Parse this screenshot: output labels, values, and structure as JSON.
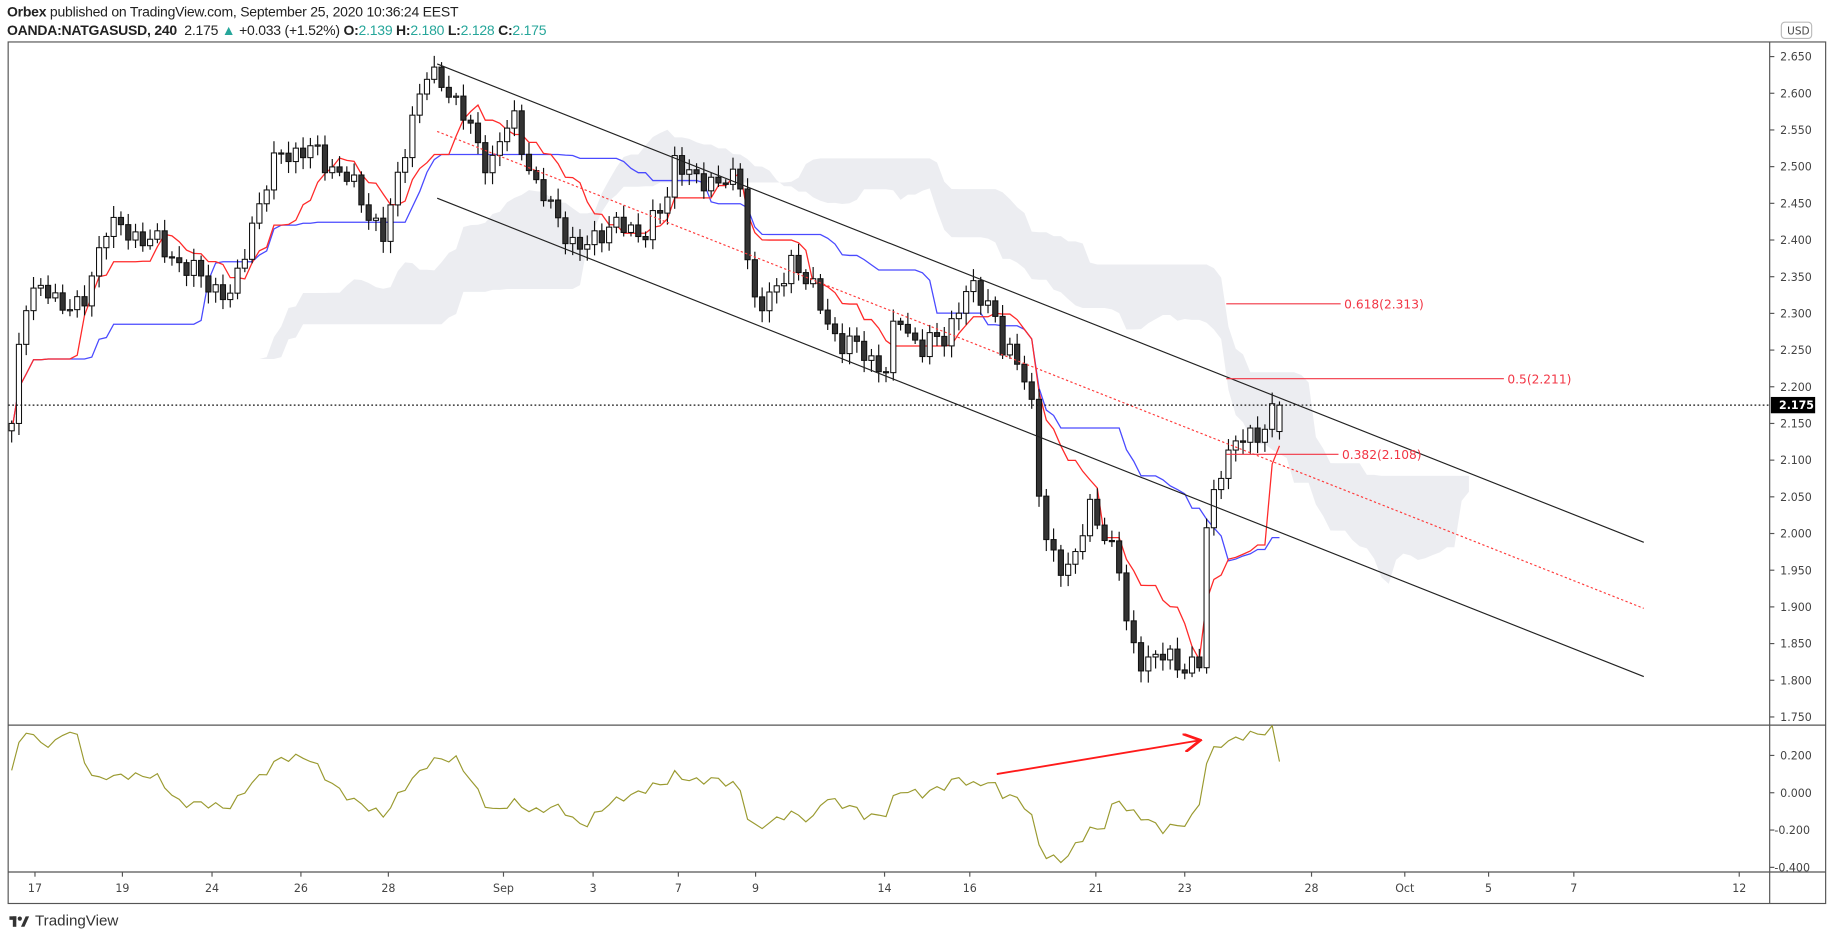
{
  "header": {
    "publisher": "Orbex",
    "published_text": "published on TradingView.com, September 25, 2020 10:36:24 EEST",
    "symbol": "OANDA:NATGASUSD, 240",
    "last": "2.175",
    "change": "+0.033 (+1.52%)",
    "o_label": "O:",
    "o": "2.139",
    "h_label": "H:",
    "h": "2.180",
    "l_label": "L:",
    "l": "2.128",
    "c_label": "C:",
    "c": "2.175"
  },
  "footer": {
    "brand": "TradingView"
  },
  "colors": {
    "up": "#ffffff",
    "down": "#333333",
    "tenkan": "#ff2a2a",
    "kijun": "#4a4aff",
    "cloud": "#e9eaee",
    "indicator": "#9a9a30",
    "channel": "#222222",
    "fib": "#f23645",
    "accent_green": "#26a69a"
  },
  "chart_data": {
    "type": "candlestick",
    "symbol": "OANDA:NATGASUSD",
    "timeframe": "240",
    "currency_label": "USD",
    "ylim": [
      1.739,
      2.67
    ],
    "price_ticks": [
      "2.650",
      "2.600",
      "2.550",
      "2.500",
      "2.450",
      "2.400",
      "2.350",
      "2.300",
      "2.250",
      "2.200",
      "2.150",
      "2.100",
      "2.050",
      "2.000",
      "1.950",
      "1.900",
      "1.850",
      "1.800",
      "1.750"
    ],
    "current_price": "2.175",
    "last_candle": {
      "open": 2.139,
      "high": 2.18,
      "low": 2.128,
      "close": 2.175
    },
    "close_path": [
      [
        0,
        2.15
      ],
      [
        1.6,
        2.32
      ],
      [
        4.8,
        2.33
      ],
      [
        9.6,
        2.3
      ],
      [
        12.8,
        2.42
      ],
      [
        19.2,
        2.4
      ],
      [
        25.6,
        2.35
      ],
      [
        30.4,
        2.32
      ],
      [
        32.8,
        2.42
      ],
      [
        36.8,
        2.52
      ],
      [
        41.6,
        2.52
      ],
      [
        46.4,
        2.48
      ],
      [
        49.6,
        2.43
      ],
      [
        51.2,
        2.4
      ],
      [
        54.4,
        2.55
      ],
      [
        56.8,
        2.62
      ],
      [
        59.2,
        2.62
      ],
      [
        62.4,
        2.56
      ],
      [
        65.6,
        2.5
      ],
      [
        68.8,
        2.57
      ],
      [
        72,
        2.47
      ],
      [
        75.2,
        2.43
      ],
      [
        77.6,
        2.38
      ],
      [
        81.6,
        2.42
      ],
      [
        86.4,
        2.41
      ],
      [
        89.6,
        2.44
      ],
      [
        91.2,
        2.52
      ],
      [
        94.4,
        2.47
      ],
      [
        97.6,
        2.49
      ],
      [
        100,
        2.47
      ],
      [
        101.6,
        2.32
      ],
      [
        104.8,
        2.32
      ],
      [
        107.2,
        2.38
      ],
      [
        110.4,
        2.32
      ],
      [
        113.6,
        2.26
      ],
      [
        116.8,
        2.25
      ],
      [
        120,
        2.22
      ],
      [
        121.6,
        2.3
      ],
      [
        124.8,
        2.25
      ],
      [
        128,
        2.27
      ],
      [
        131.2,
        2.33
      ],
      [
        134.4,
        2.32
      ],
      [
        136,
        2.25
      ],
      [
        139.2,
        2.22
      ],
      [
        140.5,
        2.15
      ],
      [
        141.3,
        2.0
      ],
      [
        143.2,
        1.96
      ],
      [
        145.6,
        1.96
      ],
      [
        148,
        2.03
      ],
      [
        150.4,
        2.0
      ],
      [
        152,
        1.95
      ],
      [
        153.3,
        1.85
      ],
      [
        155.2,
        1.83
      ],
      [
        158.4,
        1.83
      ],
      [
        161.6,
        1.82
      ],
      [
        163.2,
        1.82
      ],
      [
        164,
        2.0
      ],
      [
        165.6,
        2.09
      ],
      [
        168,
        2.12
      ],
      [
        171.2,
        2.14
      ],
      [
        174,
        2.175
      ]
    ],
    "ichimoku": {
      "tenkan": 9,
      "kijun": 26,
      "senkou_b": 52,
      "displacement": 26
    },
    "channel": {
      "upper": [
        [
          58.4,
          2.64
        ],
        [
          224,
          1.988
        ]
      ],
      "lower": [
        [
          58.4,
          2.457
        ],
        [
          224,
          1.805
        ]
      ],
      "median": [
        [
          58.4,
          2.548
        ],
        [
          224,
          1.898
        ]
      ]
    },
    "fib_levels": [
      {
        "label": "0.618(2.313)",
        "price": 2.313,
        "from_bar": 166.7,
        "to_bar": 182.4
      },
      {
        "label": "0.5(2.211)",
        "price": 2.211,
        "from_bar": 166.7,
        "to_bar": 204.8
      },
      {
        "label": "0.382(2.108)",
        "price": 2.108,
        "from_bar": 166.7,
        "to_bar": 182.1
      }
    ],
    "time_ticks": [
      {
        "label": "17",
        "bar": 3.2
      },
      {
        "label": "19",
        "bar": 15.2
      },
      {
        "label": "24",
        "bar": 27.5
      },
      {
        "label": "26",
        "bar": 39.7
      },
      {
        "label": "28",
        "bar": 51.7
      },
      {
        "label": "Sep",
        "bar": 67.5
      },
      {
        "label": "3",
        "bar": 79.8
      },
      {
        "label": "7",
        "bar": 91.5
      },
      {
        "label": "9",
        "bar": 102.1
      },
      {
        "label": "14",
        "bar": 119.8
      },
      {
        "label": "16",
        "bar": 131.5
      },
      {
        "label": "21",
        "bar": 148.8
      },
      {
        "label": "23",
        "bar": 161
      },
      {
        "label": "28",
        "bar": 178.4
      },
      {
        "label": "Oct",
        "bar": 191.2
      },
      {
        "label": "5",
        "bar": 202.7
      },
      {
        "label": "7",
        "bar": 214.4
      },
      {
        "label": "12",
        "bar": 237.1
      }
    ],
    "indicator": {
      "type": "momentum",
      "length": 10,
      "ylim": [
        -0.425,
        0.3625
      ],
      "ticks": [
        "0.200",
        "0.000",
        "-0.200",
        "-0.400"
      ],
      "tick_values": [
        0.2,
        0,
        -0.2,
        -0.4
      ],
      "annotation_arrow": {
        "from": [
          135.2,
          0.1
        ],
        "to": [
          162.9,
          0.28
        ]
      }
    }
  }
}
